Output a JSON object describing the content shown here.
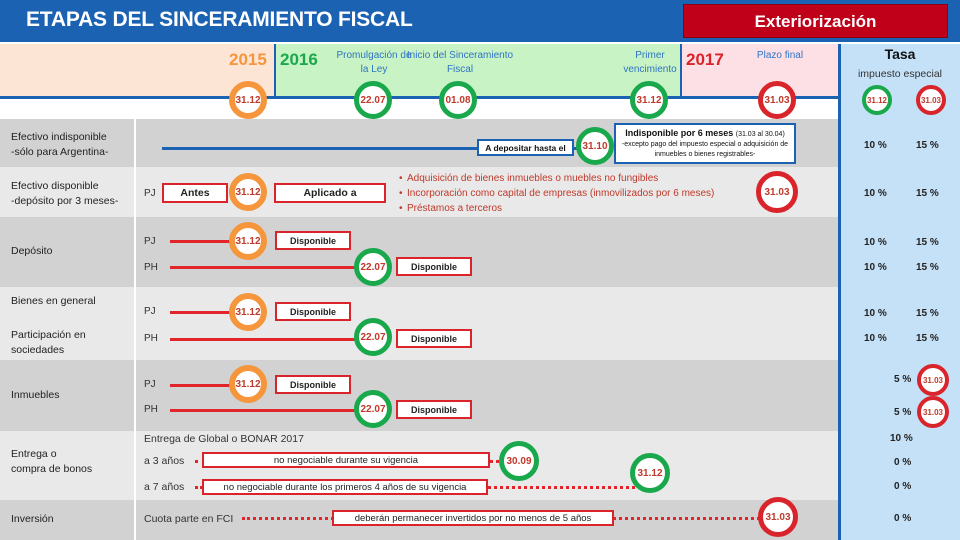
{
  "title": "ETAPAS DEL SINCERAMIENTO FISCAL",
  "badge": "Exteriorización",
  "header": {
    "y2015": "2015",
    "y2016": "2016",
    "y2017": "2017",
    "promulgacion": "Promulgación de la Ley",
    "inicio": "Inicio del Sinceramiento Fiscal",
    "primer": "Primer vencimiento",
    "plazo": "Plazo final",
    "tasa": "Tasa",
    "impuesto": "impuesto especial"
  },
  "dates": {
    "d1": "31.12",
    "d2": "22.07",
    "d3": "01.08",
    "d4": "31.12",
    "d5": "31.03",
    "t1": "31.12",
    "t2": "31.03"
  },
  "rows": {
    "r1_label1": "Efectivo indisponible",
    "r1_label2": "-sólo para Argentina-",
    "r1_dep": "A depositar hasta el",
    "r1_date": "31.10",
    "r1_box_title": "Indisponible por 6 meses",
    "r1_box_range": "(31.03 al 30.04)",
    "r1_box_note": "-excepto pago del impuesto especial o adquisición de inmuebles o bienes registrables-",
    "r1_rate1": "10 %",
    "r1_rate2": "15 %",
    "r2_label1": "Efectivo disponible",
    "r2_label2": "-depósito por 3 meses-",
    "r2_pj": "PJ",
    "r2_antes": "Antes",
    "r2_date": "31.12",
    "r2_aplicado": "Aplicado a",
    "r2_b1": "Adquisición de bienes inmuebles o muebles no fungibles",
    "r2_b2": "Incorporación como capital de empresas (inmovilizados por 6 meses)",
    "r2_b3": "Préstamos a terceros",
    "r2_end": "31.03",
    "r2_rate1": "10 %",
    "r2_rate2": "15 %",
    "r3_label": "Depósito",
    "r3_pj": "PJ",
    "r3_ph": "PH",
    "r3_d1": "31.12",
    "r3_d2": "22.07",
    "r3_disp1": "Disponible",
    "r3_disp2": "Disponible",
    "r3_rate1a": "10 %",
    "r3_rate1b": "15 %",
    "r3_rate2a": "10 %",
    "r3_rate2b": "15 %",
    "r4_label1": "Bienes en general",
    "r4_label2": "Participación en sociedades",
    "r4_pj": "PJ",
    "r4_ph": "PH",
    "r4_d1": "31.12",
    "r4_d2": "22.07",
    "r4_disp1": "Disponible",
    "r4_disp2": "Disponible",
    "r4_rate1a": "10 %",
    "r4_rate1b": "15 %",
    "r4_rate2a": "10 %",
    "r4_rate2b": "15 %",
    "r5_label": "Inmuebles",
    "r5_pj": "PJ",
    "r5_ph": "PH",
    "r5_d1": "31.12",
    "r5_d2": "22.07",
    "r5_disp1": "Disponible",
    "r5_disp2": "Disponible",
    "r5_rate1": "5 %",
    "r5_rate2": "5 %",
    "r5_c1": "31.03",
    "r5_c2": "31.03",
    "r6_label1": "Entrega o",
    "r6_label2": "compra de bonos",
    "r6_head": "Entrega de Global o BONAR 2017",
    "r6_a3": "a 3 años",
    "r6_a3_box": "no negociable durante su vigencia",
    "r6_a3_date": "30.09",
    "r6_a7": "a 7 años",
    "r6_a7_box": "no negociable durante los primeros 4 años de su vigencia",
    "r6_a7_date": "31.12",
    "r6_rate_head": "10 %",
    "r6_rate1": "0 %",
    "r6_rate2": "0 %",
    "r7_label": "Inversión",
    "r7_fci": "Cuota parte en FCI",
    "r7_box": "deberán permanecer invertidos por no menos de 5 años",
    "r7_date": "31.03",
    "r7_rate": "0 %"
  }
}
